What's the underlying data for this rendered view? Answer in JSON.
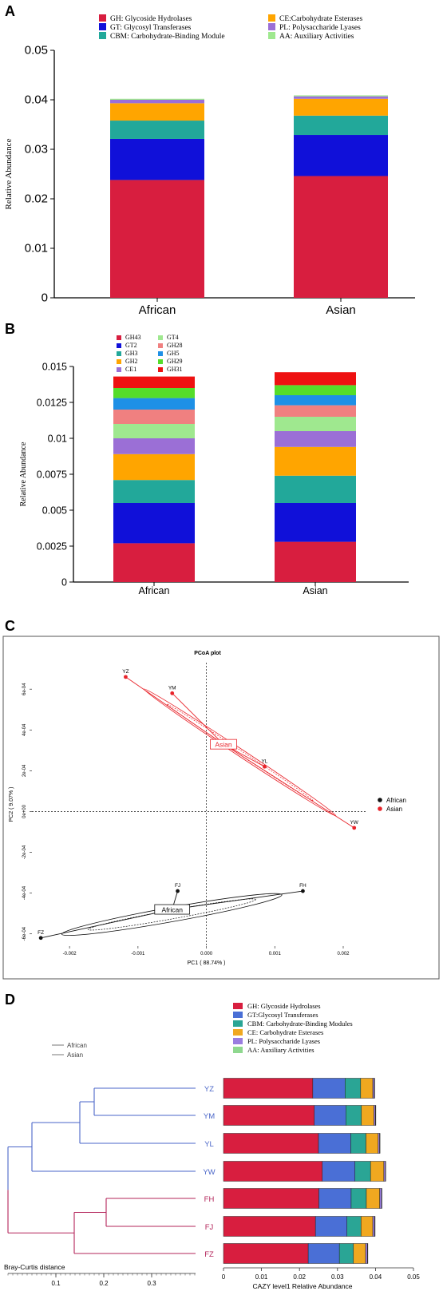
{
  "chart_data": [
    {
      "panel": "A",
      "type": "bar",
      "stacked": true,
      "categories": [
        "African",
        "Asian"
      ],
      "ylabel": "Relative Abundance",
      "ylim": [
        0,
        0.05
      ],
      "yticks": [
        "0",
        "0.01",
        "0.02",
        "0.03",
        "0.04",
        "0.05"
      ],
      "series": [
        {
          "name": "GH: Glycoside Hydrolases",
          "color": "#d81e3f",
          "values": [
            0.0238,
            0.0246
          ]
        },
        {
          "name": "GT: Glycosyl Transferases",
          "color": "#1010d9",
          "values": [
            0.0083,
            0.0083
          ]
        },
        {
          "name": "CBM: Carbohydrate-Binding Module",
          "color": "#22a89a",
          "values": [
            0.0037,
            0.0039
          ]
        },
        {
          "name": "CE:Carbohydrate Esterases",
          "color": "#ffa500",
          "values": [
            0.0035,
            0.0034
          ]
        },
        {
          "name": "PL: Polysaccharide Lyases",
          "color": "#9b6fd6",
          "values": [
            0.0007,
            0.0005
          ]
        },
        {
          "name": "AA: Auxiliary Activities",
          "color": "#9fe88f",
          "values": [
            0.0002,
            0.0002
          ]
        }
      ]
    },
    {
      "panel": "B",
      "type": "bar",
      "stacked": true,
      "categories": [
        "African",
        "Asian"
      ],
      "ylabel": "Relative Abundance",
      "ylim": [
        0,
        0.015
      ],
      "yticks": [
        "0",
        "0.0025",
        "0.005",
        "0.0075",
        "0.01",
        "0.0125",
        "0.015"
      ],
      "series": [
        {
          "name": "GH43",
          "color": "#d81e3f",
          "values": [
            0.0027,
            0.0028
          ]
        },
        {
          "name": "GT2",
          "color": "#1010d9",
          "values": [
            0.0028,
            0.0027
          ]
        },
        {
          "name": "GH3",
          "color": "#22a89a",
          "values": [
            0.0016,
            0.0019
          ]
        },
        {
          "name": "GH2",
          "color": "#ffa500",
          "values": [
            0.0018,
            0.002
          ]
        },
        {
          "name": "CE1",
          "color": "#9b6fd6",
          "values": [
            0.0011,
            0.0011
          ]
        },
        {
          "name": "GT4",
          "color": "#9fe88f",
          "values": [
            0.001,
            0.001
          ]
        },
        {
          "name": "GH28",
          "color": "#f08080",
          "values": [
            0.001,
            0.0008
          ]
        },
        {
          "name": "GH5",
          "color": "#1e90e6",
          "values": [
            0.0008,
            0.0007
          ]
        },
        {
          "name": "GH29",
          "color": "#55dd2a",
          "values": [
            0.0007,
            0.0007
          ]
        },
        {
          "name": "GH31",
          "color": "#ee1111",
          "values": [
            0.0008,
            0.0009
          ]
        }
      ]
    },
    {
      "panel": "C",
      "type": "scatter",
      "title": "PCoA plot",
      "xlabel": "PC1 ( 88.74% )",
      "ylabel": "PC2 ( 9.07% )",
      "xlim": [
        -0.00255,
        0.00235
      ],
      "ylim": [
        -0.00066,
        0.00073
      ],
      "xticks": [
        {
          "v": -0.002,
          "l": "-0.002"
        },
        {
          "v": -0.001,
          "l": "-0.001"
        },
        {
          "v": 0,
          "l": "0.000"
        },
        {
          "v": 0.001,
          "l": "0.001"
        },
        {
          "v": 0.002,
          "l": "0.002"
        }
      ],
      "yticks": [
        {
          "v": -0.0006,
          "l": "-6e-04"
        },
        {
          "v": -0.0004,
          "l": "-4e-04"
        },
        {
          "v": -0.0002,
          "l": "-2e-04"
        },
        {
          "v": 0,
          "l": "0e+00"
        },
        {
          "v": 0.0002,
          "l": "2e-04"
        },
        {
          "v": 0.0004,
          "l": "4e-04"
        },
        {
          "v": 0.0006,
          "l": "6e-04"
        }
      ],
      "series": [
        {
          "name": "African",
          "color": "#111111",
          "centroid_label": "African",
          "centroid": [
            -0.0005,
            -0.00048
          ],
          "points": [
            {
              "label": "FJ",
              "x": -0.00042,
              "y": -0.00039
            },
            {
              "label": "FH",
              "x": 0.00141,
              "y": -0.00039
            },
            {
              "label": "FZ",
              "x": -0.00242,
              "y": -0.00062
            }
          ]
        },
        {
          "name": "Asian",
          "color": "#e8232a",
          "centroid_label": "Asian",
          "centroid": [
            0.00025,
            0.00033
          ],
          "points": [
            {
              "label": "YZ",
              "x": -0.00118,
              "y": 0.00066
            },
            {
              "label": "YM",
              "x": -0.0005,
              "y": 0.00058
            },
            {
              "label": "YL",
              "x": 0.00085,
              "y": 0.00022
            },
            {
              "label": "YW",
              "x": 0.00216,
              "y": -8e-05
            }
          ]
        }
      ]
    },
    {
      "panel": "D",
      "type": "bar",
      "stacked": true,
      "orientation": "horizontal",
      "categories": [
        "YZ",
        "YM",
        "YL",
        "YW",
        "FH",
        "FJ",
        "FZ"
      ],
      "xlabel": "CAZY level1 Relative Abundance",
      "xlim": [
        0,
        0.05
      ],
      "xticks": [
        "0",
        "0.01",
        "0.02",
        "0.03",
        "0.04",
        "0.05"
      ],
      "dendrogram_legend": [
        "African",
        "Asian"
      ],
      "dendrogram_axis_label": "Bray-Curtis distance",
      "dendrogram_ticks": [
        "0.1",
        "0.2",
        "0.3"
      ],
      "series": [
        {
          "name": "GH: Glycoside Hydrolases",
          "color": "#d81e3f",
          "values": [
            0.0235,
            0.0239,
            0.025,
            0.026,
            0.0251,
            0.0242,
            0.0223
          ]
        },
        {
          "name": "GT:Glycosyl Transferases",
          "color": "#4a6fd6",
          "values": [
            0.0085,
            0.0083,
            0.0085,
            0.0086,
            0.0085,
            0.0083,
            0.0082
          ]
        },
        {
          "name": "CBM: Carbohydrate-Binding Modules",
          "color": "#2aa595",
          "values": [
            0.0041,
            0.0041,
            0.004,
            0.0041,
            0.004,
            0.0037,
            0.0037
          ]
        },
        {
          "name": "CE: Carbohydrate Esterases",
          "color": "#f0a820",
          "values": [
            0.0032,
            0.0033,
            0.0032,
            0.0035,
            0.0035,
            0.0031,
            0.0032
          ]
        },
        {
          "name": "PL: Polysaccharide Lyases",
          "color": "#9a7de0",
          "values": [
            0.0004,
            0.0004,
            0.0004,
            0.0004,
            0.0005,
            0.0005,
            0.0005
          ]
        },
        {
          "name": "AA: Auxiliary Activities",
          "color": "#8fd88f",
          "values": [
            0.0001,
            0.0001,
            0.0001,
            0.0001,
            0.0001,
            0.0001,
            0.0001
          ]
        }
      ]
    }
  ],
  "panels": {
    "a": "A",
    "b": "B",
    "c": "C",
    "d": "D"
  },
  "colors": {
    "asian_branch": "#4a66c8",
    "african_branch": "#b3245a"
  }
}
